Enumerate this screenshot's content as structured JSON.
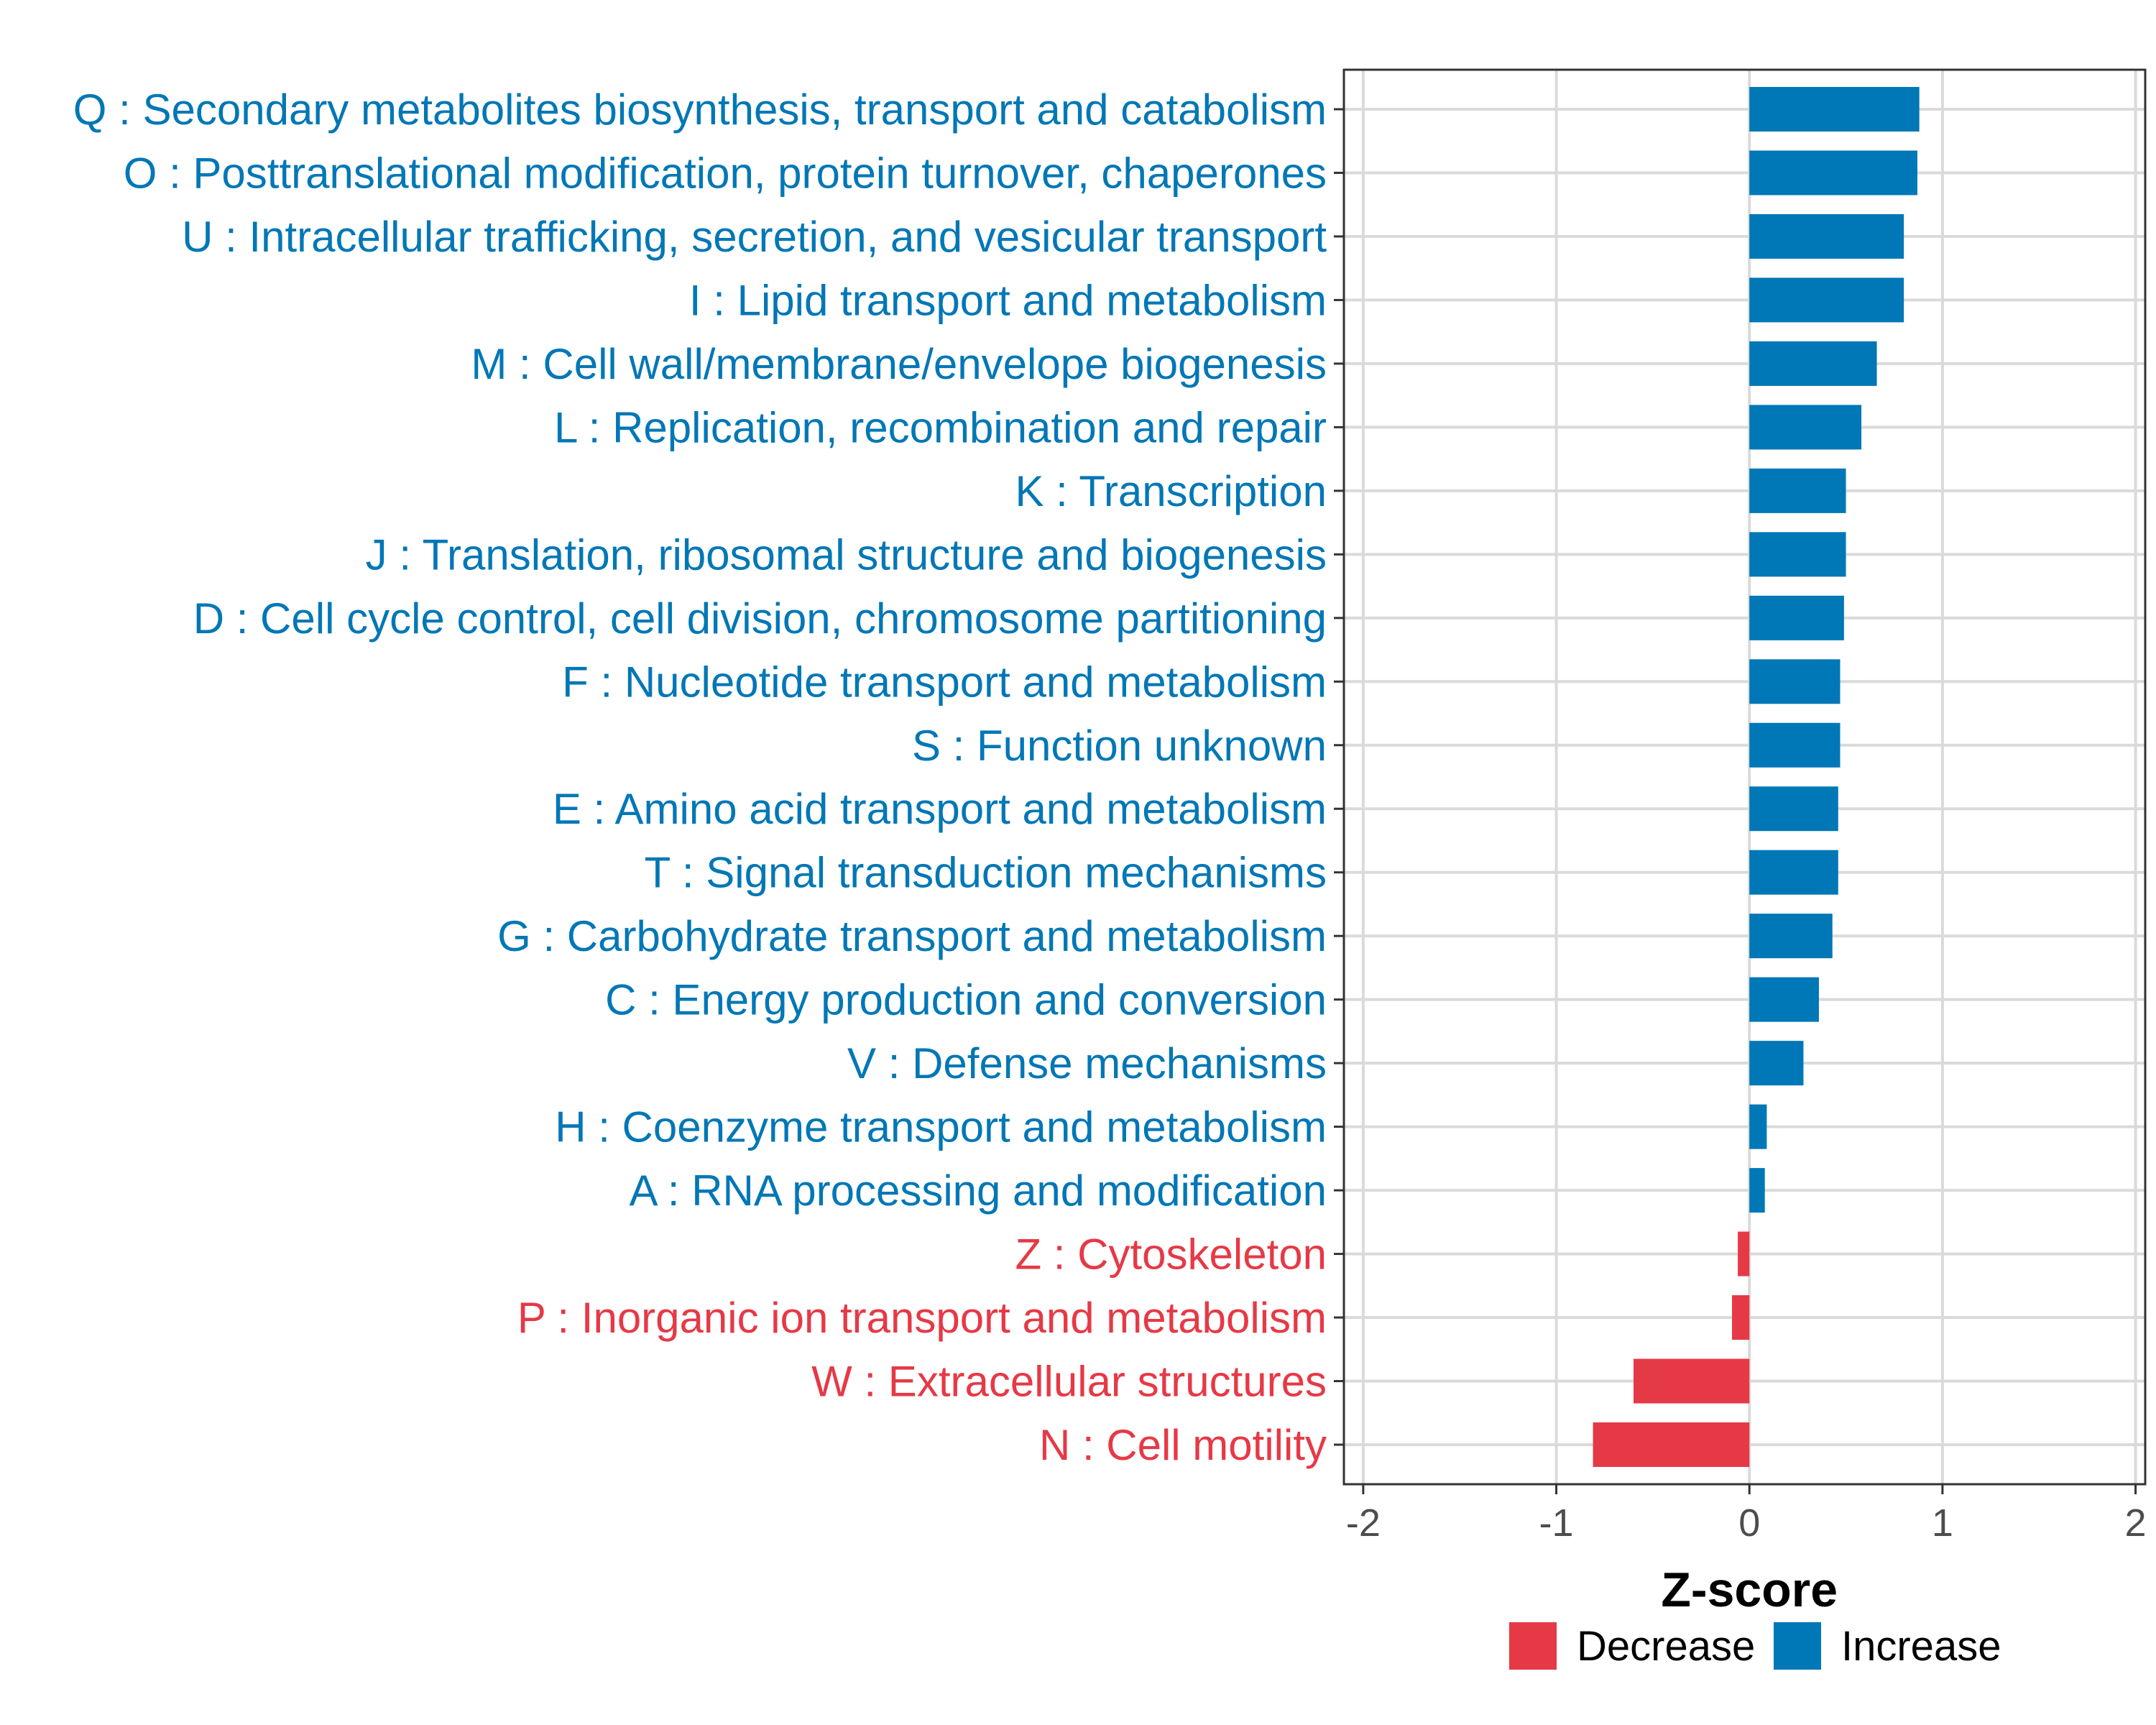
{
  "chart_data": {
    "type": "bar",
    "orientation": "horizontal",
    "title": "",
    "xlabel": "Z-score",
    "ylabel": "",
    "xlim": [
      -2.1,
      2.05
    ],
    "xticks": [
      -2,
      -1,
      0,
      1,
      2
    ],
    "xtick_labels": [
      "-2",
      "-1",
      "0",
      "1",
      "2"
    ],
    "grid": true,
    "legend_position": "bottom",
    "colors": {
      "Decrease": "#e63946",
      "Increase": "#0077b6"
    },
    "legend": [
      {
        "label": "Decrease",
        "color": "#e63946"
      },
      {
        "label": "Increase",
        "color": "#0077b6"
      }
    ],
    "categories": [
      {
        "label": "Q : Secondary metabolites biosynthesis, transport and catabolism",
        "value": 0.88,
        "direction": "Increase"
      },
      {
        "label": "O : Posttranslational modification, protein turnover, chaperones",
        "value": 0.87,
        "direction": "Increase"
      },
      {
        "label": "U : Intracellular trafficking, secretion, and vesicular transport",
        "value": 0.8,
        "direction": "Increase"
      },
      {
        "label": "I : Lipid transport and metabolism",
        "value": 0.8,
        "direction": "Increase"
      },
      {
        "label": "M : Cell wall/membrane/envelope biogenesis",
        "value": 0.66,
        "direction": "Increase"
      },
      {
        "label": "L : Replication, recombination and repair",
        "value": 0.58,
        "direction": "Increase"
      },
      {
        "label": "K : Transcription",
        "value": 0.5,
        "direction": "Increase"
      },
      {
        "label": "J : Translation, ribosomal structure and biogenesis",
        "value": 0.5,
        "direction": "Increase"
      },
      {
        "label": "D : Cell cycle control, cell division, chromosome partitioning",
        "value": 0.49,
        "direction": "Increase"
      },
      {
        "label": "F : Nucleotide transport and metabolism",
        "value": 0.47,
        "direction": "Increase"
      },
      {
        "label": "S : Function unknown",
        "value": 0.47,
        "direction": "Increase"
      },
      {
        "label": "E : Amino acid transport and metabolism",
        "value": 0.46,
        "direction": "Increase"
      },
      {
        "label": "T : Signal transduction mechanisms",
        "value": 0.46,
        "direction": "Increase"
      },
      {
        "label": "G : Carbohydrate transport and metabolism",
        "value": 0.43,
        "direction": "Increase"
      },
      {
        "label": "C : Energy production and conversion",
        "value": 0.36,
        "direction": "Increase"
      },
      {
        "label": "V : Defense mechanisms",
        "value": 0.28,
        "direction": "Increase"
      },
      {
        "label": "H : Coenzyme transport and metabolism",
        "value": 0.09,
        "direction": "Increase"
      },
      {
        "label": "A : RNA processing and modification",
        "value": 0.08,
        "direction": "Increase"
      },
      {
        "label": "Z : Cytoskeleton",
        "value": -0.06,
        "direction": "Decrease"
      },
      {
        "label": "P : Inorganic ion transport and metabolism",
        "value": -0.09,
        "direction": "Decrease"
      },
      {
        "label": "W : Extracellular structures",
        "value": -0.6,
        "direction": "Decrease"
      },
      {
        "label": "N : Cell motility",
        "value": -0.81,
        "direction": "Decrease"
      }
    ]
  }
}
